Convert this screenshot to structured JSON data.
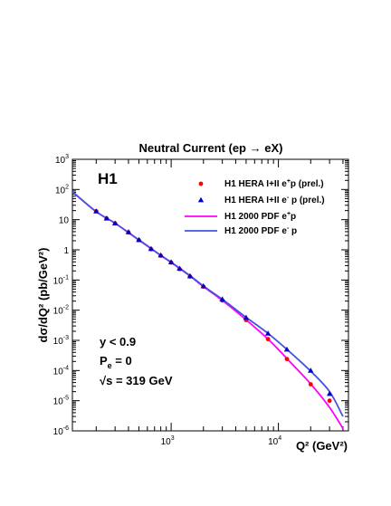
{
  "chart_data": {
    "type": "scatter",
    "title": "Neutral Current (ep → eX)",
    "xlabel": "Q² (GeV²)",
    "ylabel": "dσ/dQ² (pb/GeV²)",
    "x_scale": "log",
    "y_scale": "log",
    "xlim": [
      120,
      45000
    ],
    "ylim": [
      1e-06,
      1000
    ],
    "x_ticks": [
      {
        "value": 1000,
        "base": "10",
        "exp": "3"
      },
      {
        "value": 10000,
        "base": "10",
        "exp": "4"
      }
    ],
    "y_ticks": [
      {
        "value": 1000,
        "base": "10",
        "exp": "3"
      },
      {
        "value": 100,
        "base": "10",
        "exp": "2"
      },
      {
        "value": 10,
        "base": "10",
        "exp": ""
      },
      {
        "value": 1,
        "base": "1",
        "exp": ""
      },
      {
        "value": 0.1,
        "base": "10",
        "exp": "-1"
      },
      {
        "value": 0.01,
        "base": "10",
        "exp": "-2"
      },
      {
        "value": 0.001,
        "base": "10",
        "exp": "-3"
      },
      {
        "value": 0.0001,
        "base": "10",
        "exp": "-4"
      },
      {
        "value": 1e-05,
        "base": "10",
        "exp": "-5"
      },
      {
        "value": 1e-06,
        "base": "10",
        "exp": "-6"
      }
    ],
    "experiment_label": "H1",
    "conditions": [
      "y < 0.9",
      "P",
      "e",
      " = 0",
      "√s = 319 GeV"
    ],
    "legend_position": "top-right",
    "series": [
      {
        "name": "H1 HERA I+II e⁺p (prel.)",
        "legend": {
          "prefix": "H1 HERA I+II e",
          "sup": "+",
          "suffix": "p (prel.)"
        },
        "marker": "circle",
        "color": "#ff0000",
        "x": [
          200,
          250,
          300,
          400,
          500,
          650,
          800,
          1000,
          1200,
          1500,
          2000,
          3000,
          5000,
          8000,
          12000,
          20000,
          30000
        ],
        "y": [
          19,
          11,
          7.5,
          3.8,
          2.1,
          1.05,
          0.64,
          0.38,
          0.23,
          0.13,
          0.06,
          0.021,
          0.0047,
          0.0011,
          0.00024,
          3.5e-05,
          1e-05
        ]
      },
      {
        "name": "H1 HERA I+II e⁻p (prel.)",
        "legend": {
          "prefix": "H1 HERA I+II e",
          "sup": "-",
          "suffix": " p (prel.)"
        },
        "marker": "triangle",
        "color": "#0000cc",
        "x": [
          200,
          250,
          300,
          400,
          500,
          650,
          800,
          1000,
          1200,
          1500,
          2000,
          3000,
          5000,
          8000,
          12000,
          20000,
          30000
        ],
        "y": [
          19,
          11,
          7.6,
          3.9,
          2.15,
          1.08,
          0.66,
          0.39,
          0.24,
          0.135,
          0.063,
          0.023,
          0.0057,
          0.0017,
          0.0005,
          0.0001,
          1.7e-05
        ]
      },
      {
        "name": "H1 2000 PDF e⁺p",
        "legend": {
          "prefix": "H1 2000 PDF e",
          "sup": "+",
          "suffix": "p"
        },
        "type": "line",
        "color": "#ff00ff",
        "x": [
          120,
          200,
          300,
          500,
          800,
          1000,
          1500,
          2000,
          3000,
          5000,
          8000,
          12000,
          20000,
          30000,
          40000
        ],
        "y": [
          85,
          18.5,
          7.6,
          2.1,
          0.65,
          0.38,
          0.135,
          0.06,
          0.021,
          0.0048,
          0.0011,
          0.00025,
          3.6e-05,
          6e-06,
          1.2e-06
        ]
      },
      {
        "name": "H1 2000 PDF e⁻p",
        "legend": {
          "prefix": "H1 2000 PDF e",
          "sup": "-",
          "suffix": " p"
        },
        "type": "line",
        "color": "#4455dd",
        "x": [
          120,
          200,
          300,
          500,
          800,
          1000,
          1500,
          2000,
          3000,
          5000,
          8000,
          12000,
          20000,
          30000,
          40000
        ],
        "y": [
          85,
          18.5,
          7.6,
          2.15,
          0.66,
          0.39,
          0.14,
          0.063,
          0.023,
          0.0058,
          0.0017,
          0.0005,
          9.5e-05,
          2e-05,
          3e-06
        ]
      }
    ]
  }
}
